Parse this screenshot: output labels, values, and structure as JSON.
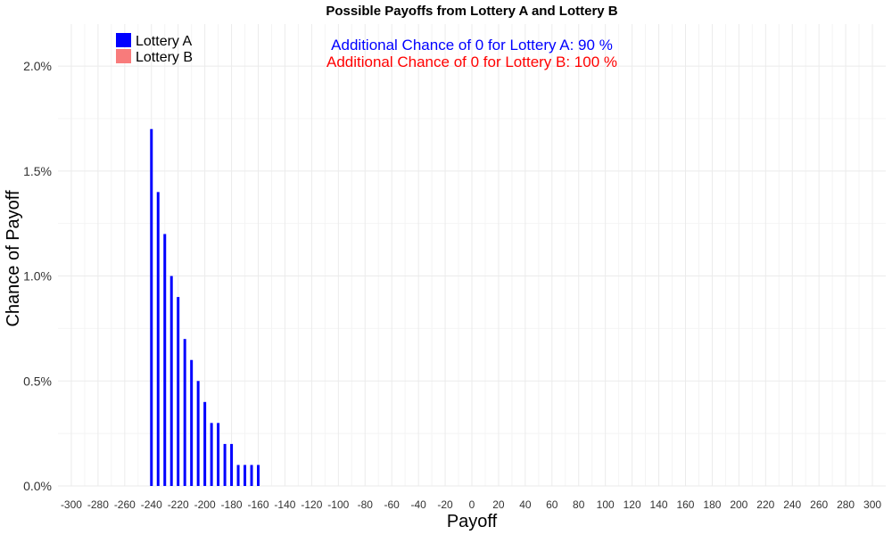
{
  "chart_data": {
    "type": "bar",
    "title": "Possible Payoffs from Lottery A and Lottery B",
    "xlabel": "Payoff",
    "ylabel": "Chance of Payoff",
    "xlim": [
      -310,
      310
    ],
    "ylim": [
      0,
      2.2
    ],
    "x_ticks": [
      -300,
      -280,
      -260,
      -240,
      -220,
      -200,
      -180,
      -160,
      -140,
      -120,
      -100,
      -80,
      -60,
      -40,
      -20,
      0,
      20,
      40,
      60,
      80,
      100,
      120,
      140,
      160,
      180,
      200,
      220,
      240,
      260,
      280,
      300
    ],
    "y_ticks": [
      {
        "value": 0.0,
        "label": "0.0%"
      },
      {
        "value": 0.5,
        "label": "0.5%"
      },
      {
        "value": 1.0,
        "label": "1.0%"
      },
      {
        "value": 1.5,
        "label": "1.5%"
      },
      {
        "value": 2.0,
        "label": "2.0%"
      }
    ],
    "grid": true,
    "legend_position": "top-left",
    "series": [
      {
        "name": "Lottery A",
        "color": "#0000ff",
        "x": [
          -240,
          -235,
          -230,
          -225,
          -220,
          -215,
          -210,
          -205,
          -200,
          -195,
          -190,
          -185,
          -180,
          -175,
          -170,
          -165,
          -160
        ],
        "values": [
          1.7,
          1.4,
          1.2,
          1.0,
          0.9,
          0.7,
          0.6,
          0.5,
          0.4,
          0.3,
          0.3,
          0.2,
          0.2,
          0.1,
          0.1,
          0.1,
          0.1
        ]
      },
      {
        "name": "Lottery B",
        "color": "#f87b7b",
        "x": [],
        "values": []
      }
    ],
    "annotations": [
      {
        "text": "Additional Chance of 0 for Lottery A:  90 %",
        "color": "#0000ff"
      },
      {
        "text": "Additional Chance of 0 for Lottery B:  100 %",
        "color": "#ff0000"
      }
    ]
  }
}
